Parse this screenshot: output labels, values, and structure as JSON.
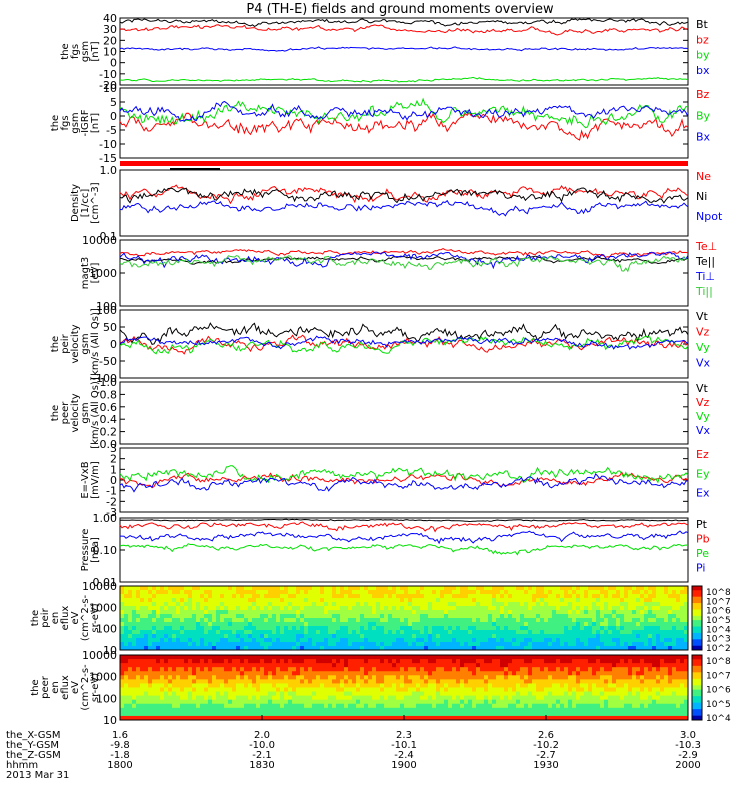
{
  "title": "P4 (TH-E) fields and ground moments overview",
  "colors": {
    "black": "#000000",
    "red": "#ff0000",
    "green": "#00e000",
    "blue": "#0000ff",
    "lime": "#33cc33"
  },
  "chart_data": [
    {
      "type": "line",
      "id": "p1",
      "ylabel": [
        "the",
        "fgs",
        "gsm",
        "[nT]"
      ],
      "ylim": [
        -25,
        40
      ],
      "yticks": [
        "40",
        "30",
        "20",
        "10",
        "0",
        "-10",
        "-20"
      ],
      "series": [
        {
          "name": "Bt",
          "color": "#000000",
          "base": 36,
          "amp": 3
        },
        {
          "name": "bz",
          "color": "#ff0000",
          "base": 29,
          "amp": 3
        },
        {
          "name": "by",
          "color": "#00e000",
          "base": -20,
          "amp": 1.5
        },
        {
          "name": "bx",
          "color": "#0000ff",
          "base": 10,
          "amp": 1.5
        }
      ]
    },
    {
      "type": "line",
      "id": "p2",
      "ylabel": [
        "the",
        "fgs",
        "gsm",
        "-IGRF",
        "[nT]"
      ],
      "ylim": [
        -18,
        10
      ],
      "yticks": [
        "10",
        "5",
        "0",
        "-5",
        "-10",
        "-15"
      ],
      "series": [
        {
          "name": "Bz",
          "color": "#ff0000",
          "base": -6,
          "amp": 4
        },
        {
          "name": "By",
          "color": "#00e000",
          "base": 0,
          "amp": 4
        },
        {
          "name": "Bx",
          "color": "#0000ff",
          "base": 0,
          "amp": 3
        }
      ]
    },
    {
      "type": "line",
      "id": "p3",
      "ylabel": [
        "Density",
        "[1/cc]",
        "[cm^-3]"
      ],
      "ylim": [
        0.1,
        1.0
      ],
      "log": true,
      "yticks": [
        "1.0",
        "0.1"
      ],
      "series": [
        {
          "name": "Ne",
          "color": "#ff0000",
          "base": 0.45,
          "amp": 0.1
        },
        {
          "name": "Ni",
          "color": "#000000",
          "base": 0.42,
          "amp": 0.1
        },
        {
          "name": "Npot",
          "color": "#0000ff",
          "base": 0.28,
          "amp": 0.05
        }
      ]
    },
    {
      "type": "line",
      "id": "p4",
      "ylabel": [
        "magt3",
        "[eV]"
      ],
      "ylim": [
        100,
        10000
      ],
      "log": true,
      "yticks": [
        "10000",
        "1000",
        "100"
      ],
      "series": [
        {
          "name": "Te⊥",
          "color": "#ff0000",
          "base": 4000,
          "amp": 800
        },
        {
          "name": "Te||",
          "color": "#000000",
          "base": 2600,
          "amp": 500
        },
        {
          "name": "Ti⊥",
          "color": "#0000ff",
          "base": 3000,
          "amp": 1200
        },
        {
          "name": "Ti||",
          "color": "#33cc33",
          "base": 2000,
          "amp": 900
        }
      ]
    },
    {
      "type": "line",
      "id": "p5",
      "ylabel": [
        "the",
        "peir",
        "velocity",
        "gsm",
        "[km/s (All Qs)]"
      ],
      "ylim": [
        -100,
        100
      ],
      "yticks": [
        "100",
        "50",
        "0",
        "-50",
        "-100"
      ],
      "series": [
        {
          "name": "Vt",
          "color": "#000000",
          "base": 30,
          "amp": 25
        },
        {
          "name": "Vz",
          "color": "#ff0000",
          "base": 0,
          "amp": 20
        },
        {
          "name": "Vy",
          "color": "#00e000",
          "base": 0,
          "amp": 20
        },
        {
          "name": "Vx",
          "color": "#0000ff",
          "base": 5,
          "amp": 15
        }
      ]
    },
    {
      "type": "line",
      "id": "p6",
      "ylabel": [
        "the",
        "peer",
        "velocity",
        "gsm",
        "[km/s (All Qs)]"
      ],
      "ylim": [
        0,
        1
      ],
      "yticks": [
        "1.0",
        "0.8",
        "0.6",
        "0.4",
        "0.2",
        "0.0"
      ],
      "series": [
        {
          "name": "Vt",
          "color": "#000000"
        },
        {
          "name": "Vz",
          "color": "#ff0000"
        },
        {
          "name": "Vy",
          "color": "#00e000"
        },
        {
          "name": "Vx",
          "color": "#0000ff"
        }
      ]
    },
    {
      "type": "line",
      "id": "p7",
      "ylabel": [
        "E=-VxB",
        "[mV/m]"
      ],
      "ylim": [
        -3,
        3
      ],
      "yticks": [
        "3",
        "2",
        "1",
        "0",
        "-1",
        "-2",
        "-3"
      ],
      "series": [
        {
          "name": "Ez",
          "color": "#ff0000",
          "base": 0,
          "amp": 0.5
        },
        {
          "name": "Ey",
          "color": "#00e000",
          "base": 0.5,
          "amp": 0.7
        },
        {
          "name": "Ex",
          "color": "#0000ff",
          "base": -0.3,
          "amp": 0.6
        }
      ]
    },
    {
      "type": "line",
      "id": "p8",
      "ylabel": [
        "Pressure",
        "[nPa]"
      ],
      "ylim": [
        0.01,
        1.0
      ],
      "log": true,
      "yticks": [
        "1.00",
        "0.10",
        "0.01"
      ],
      "series": [
        {
          "name": "Pt",
          "color": "#000000",
          "base": 0.85,
          "amp": 0.05
        },
        {
          "name": "Pb",
          "color": "#ff0000",
          "base": 0.55,
          "amp": 0.15
        },
        {
          "name": "Pe",
          "color": "#00e000",
          "base": 0.12,
          "amp": 0.03
        },
        {
          "name": "Pi",
          "color": "#0000ff",
          "base": 0.28,
          "amp": 0.08
        }
      ]
    },
    {
      "type": "heatmap",
      "id": "p9",
      "ylabel": [
        "the",
        "peir",
        "en",
        "eflux",
        "eV",
        "(cm^2-s-",
        "sr-eV)"
      ],
      "yticks": [
        "10000",
        "1000",
        "100",
        "10"
      ],
      "colorbar_ticks": [
        "10^8",
        "10^7",
        "10^6",
        "10^5",
        "10^4",
        "10^3",
        "10^2"
      ]
    },
    {
      "type": "heatmap",
      "id": "p10",
      "ylabel": [
        "the",
        "peer",
        "en",
        "eflux",
        "eV",
        "(cm^2-s-",
        "sr-eV)"
      ],
      "yticks": [
        "10000",
        "1000",
        "100",
        "10"
      ],
      "colorbar_ticks": [
        "10^8",
        "10^7",
        "10^6",
        "10^5",
        "10^4"
      ]
    }
  ],
  "xaxis": {
    "row_labels": [
      "the_X-GSM",
      "the_Y-GSM",
      "the_Z-GSM",
      "hhmm",
      "2013 Mar 31"
    ],
    "ticks": [
      [
        "1.6",
        "2.0",
        "2.3",
        "2.6",
        "3.0"
      ],
      [
        "-9.8",
        "-10.0",
        "-10.1",
        "-10.2",
        "-10.3"
      ],
      [
        "-1.8",
        "-2.1",
        "-2.4",
        "-2.7",
        "-2.9"
      ],
      [
        "1800",
        "1830",
        "1900",
        "1930",
        "2000"
      ]
    ]
  }
}
